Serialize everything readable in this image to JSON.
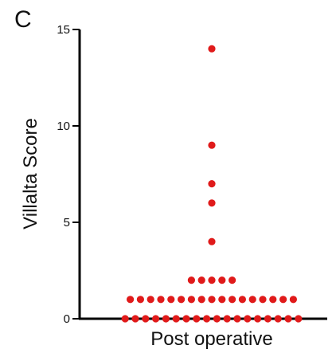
{
  "panel_label": "C",
  "chart_data": {
    "type": "scatter",
    "ylabel": "Villalta Score",
    "categories": [
      "Post operative"
    ],
    "ylim": [
      0,
      15
    ],
    "yticks": [
      "0",
      "5",
      "10",
      "15"
    ],
    "grid": false,
    "colors": {
      "points": "#e01a1a",
      "axis": "#000000"
    },
    "points": [
      {
        "y": 14,
        "count": 1
      },
      {
        "y": 9,
        "count": 1
      },
      {
        "y": 7,
        "count": 1
      },
      {
        "y": 6,
        "count": 1
      },
      {
        "y": 4,
        "count": 1
      },
      {
        "y": 2,
        "count": 5
      },
      {
        "y": 1,
        "count": 17
      },
      {
        "y": 0,
        "count": 18
      }
    ]
  }
}
